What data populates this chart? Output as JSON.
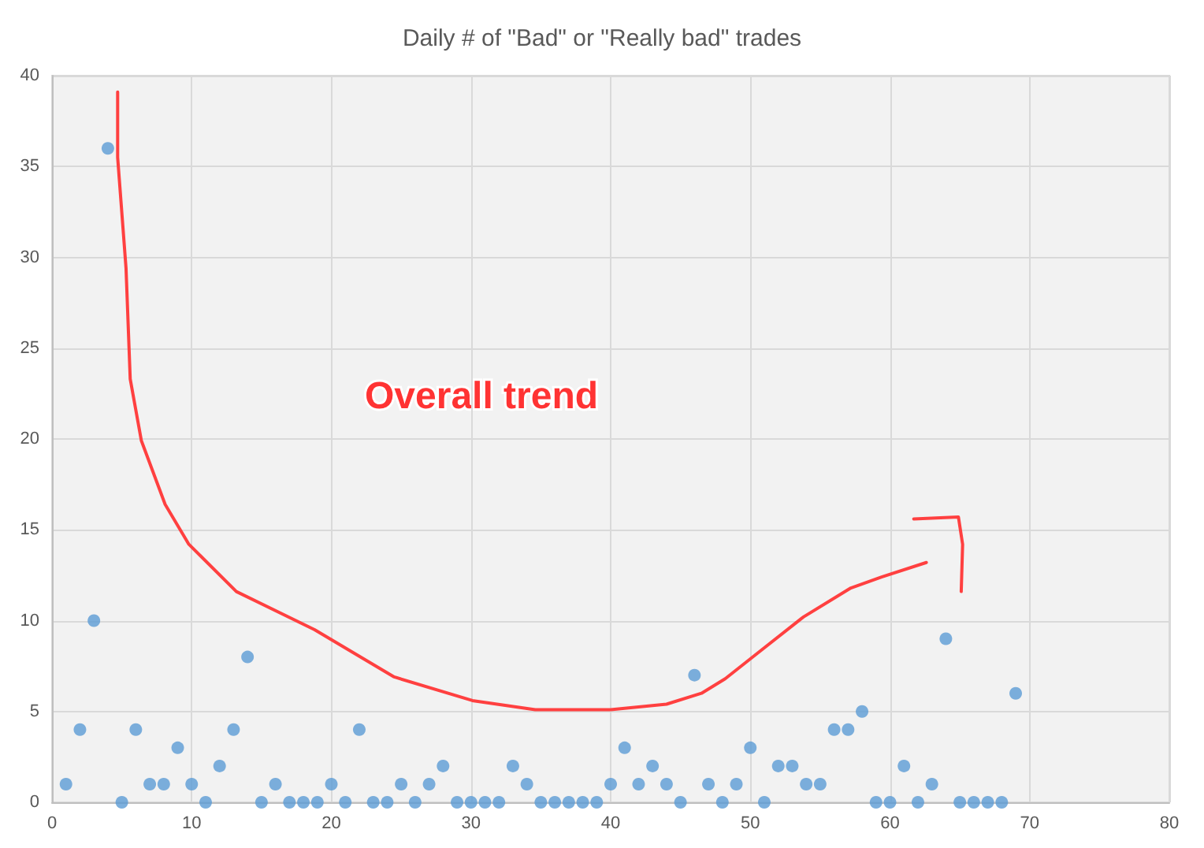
{
  "chart_data": {
    "type": "scatter",
    "title": "Daily # of \"Bad\" or \"Really bad\" trades",
    "x": [
      1,
      2,
      3,
      4,
      5,
      6,
      7,
      8,
      9,
      10,
      11,
      12,
      13,
      14,
      15,
      16,
      17,
      18,
      19,
      20,
      21,
      22,
      23,
      24,
      25,
      26,
      27,
      28,
      29,
      30,
      31,
      32,
      33,
      34,
      35,
      36,
      37,
      38,
      39,
      40,
      41,
      42,
      43,
      44,
      45,
      46,
      47,
      48,
      49,
      50,
      51,
      52,
      53,
      54,
      55,
      56,
      57,
      58,
      59,
      60,
      61,
      62,
      63,
      64,
      65,
      66,
      67,
      68,
      69
    ],
    "series": [
      {
        "color": "#5b9bd5",
        "marker": "circle",
        "values": [
          1,
          4,
          10,
          36,
          0,
          4,
          1,
          1,
          3,
          1,
          0,
          2,
          4,
          8,
          0,
          1,
          0,
          0,
          0,
          1,
          0,
          4,
          0,
          0,
          1,
          0,
          1,
          2,
          0,
          0,
          0,
          0,
          2,
          1,
          0,
          0,
          0,
          0,
          0,
          1,
          3,
          1,
          2,
          1,
          0,
          7,
          1,
          0,
          1,
          3,
          0,
          2,
          2,
          1,
          1,
          4,
          4,
          5,
          0,
          0,
          2,
          0,
          1,
          9,
          0,
          0,
          0,
          0,
          6
        ]
      },
      {
        "type": "line",
        "color": "#ff4040",
        "marker": "none",
        "x": [
          4.7,
          4.7,
          5.3,
          5.6,
          6.4,
          8.1,
          9.8,
          13.2,
          18.8,
          24.5,
          30.1,
          34.6,
          40,
          44,
          46.5,
          48.2,
          50.5,
          53.8,
          57.2,
          59.4,
          62.6
        ],
        "values": [
          39.1,
          35.5,
          29.4,
          23.3,
          19.9,
          16.4,
          14.2,
          11.6,
          9.5,
          6.9,
          5.6,
          5.1,
          5.1,
          5.4,
          6.0,
          6.8,
          8.2,
          10.2,
          11.8,
          12.4,
          13.2
        ]
      },
      {
        "type": "line",
        "color": "#ff4040",
        "marker": "none",
        "x": [
          61.7,
          64.9,
          65.2,
          65.1
        ],
        "values": [
          15.6,
          15.7,
          14.2,
          11.6
        ]
      }
    ],
    "annotations": [
      "Overall trend"
    ],
    "xlim": [
      0,
      80
    ],
    "xticks": [
      0,
      10,
      20,
      30,
      40,
      50,
      60,
      70,
      80
    ],
    "ylim": [
      0,
      40
    ],
    "yticks": [
      0,
      5,
      10,
      15,
      20,
      25,
      30,
      35,
      40
    ],
    "grid": true
  }
}
